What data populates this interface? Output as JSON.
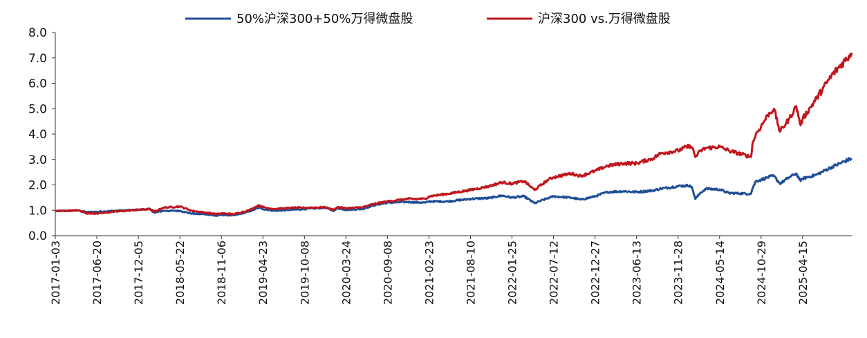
{
  "chart_data": {
    "type": "line",
    "title": "",
    "xlabel": "",
    "ylabel": "",
    "ylim": [
      0,
      8
    ],
    "yticks": [
      "0.0",
      "1.0",
      "2.0",
      "3.0",
      "4.0",
      "5.0",
      "6.0",
      "7.0",
      "8.0"
    ],
    "xticks": [
      "2017-01-03",
      "2017-06-20",
      "2017-12-05",
      "2018-05-22",
      "2018-11-06",
      "2019-04-23",
      "2019-10-08",
      "2020-03-24",
      "2020-09-08",
      "2021-02-23",
      "2021-08-10",
      "2022-01-25",
      "2022-07-12",
      "2022-12-27",
      "2023-06-13",
      "2023-11-28",
      "2024-05-14",
      "2024-10-29",
      "2025-04-15"
    ],
    "x_end": "2025-10-31",
    "grid": false,
    "legend_position": "top",
    "series": [
      {
        "name": "50%沪深300+50%万得微盘股",
        "color": "#1f4e96",
        "points": [
          [
            "2017-01-03",
            0.97
          ],
          [
            "2017-02-20",
            0.98
          ],
          [
            "2017-04-05",
            1.0
          ],
          [
            "2017-05-10",
            0.93
          ],
          [
            "2017-06-20",
            0.94
          ],
          [
            "2017-08-15",
            0.97
          ],
          [
            "2017-10-15",
            1.0
          ],
          [
            "2017-12-05",
            1.02
          ],
          [
            "2018-01-20",
            1.05
          ],
          [
            "2018-02-09",
            0.9
          ],
          [
            "2018-03-15",
            0.98
          ],
          [
            "2018-05-22",
            0.98
          ],
          [
            "2018-07-10",
            0.87
          ],
          [
            "2018-09-10",
            0.84
          ],
          [
            "2018-10-18",
            0.78
          ],
          [
            "2018-11-06",
            0.82
          ],
          [
            "2018-12-28",
            0.8
          ],
          [
            "2019-02-25",
            0.95
          ],
          [
            "2019-04-08",
            1.1
          ],
          [
            "2019-04-23",
            1.05
          ],
          [
            "2019-06-10",
            0.98
          ],
          [
            "2019-08-20",
            1.02
          ],
          [
            "2019-10-08",
            1.05
          ],
          [
            "2019-12-31",
            1.1
          ],
          [
            "2020-02-03",
            0.98
          ],
          [
            "2020-02-20",
            1.08
          ],
          [
            "2020-03-24",
            1.02
          ],
          [
            "2020-05-30",
            1.05
          ],
          [
            "2020-07-15",
            1.2
          ],
          [
            "2020-09-08",
            1.3
          ],
          [
            "2020-11-30",
            1.33
          ],
          [
            "2021-02-08",
            1.3
          ],
          [
            "2021-02-23",
            1.35
          ],
          [
            "2021-05-10",
            1.35
          ],
          [
            "2021-08-10",
            1.45
          ],
          [
            "2021-10-25",
            1.48
          ],
          [
            "2021-12-15",
            1.58
          ],
          [
            "2022-01-25",
            1.5
          ],
          [
            "2022-03-15",
            1.55
          ],
          [
            "2022-04-26",
            1.28
          ],
          [
            "2022-06-20",
            1.48
          ],
          [
            "2022-07-12",
            1.55
          ],
          [
            "2022-09-20",
            1.5
          ],
          [
            "2022-10-31",
            1.42
          ],
          [
            "2022-12-27",
            1.55
          ],
          [
            "2023-02-15",
            1.72
          ],
          [
            "2023-04-20",
            1.75
          ],
          [
            "2023-06-13",
            1.72
          ],
          [
            "2023-08-20",
            1.78
          ],
          [
            "2023-09-20",
            1.85
          ],
          [
            "2023-11-28",
            1.95
          ],
          [
            "2024-01-15",
            1.98
          ],
          [
            "2024-01-25",
            1.85
          ],
          [
            "2024-02-06",
            1.45
          ],
          [
            "2024-02-28",
            1.7
          ],
          [
            "2024-03-20",
            1.85
          ],
          [
            "2024-05-14",
            1.82
          ],
          [
            "2024-06-20",
            1.68
          ],
          [
            "2024-09-18",
            1.65
          ],
          [
            "2024-09-24",
            1.85
          ],
          [
            "2024-10-08",
            2.15
          ],
          [
            "2024-10-29",
            2.2
          ],
          [
            "2024-11-25",
            2.3
          ],
          [
            "2024-12-20",
            2.35
          ],
          [
            "2025-01-13",
            2.05
          ],
          [
            "2025-02-20",
            2.3
          ],
          [
            "2025-03-20",
            2.45
          ],
          [
            "2025-04-07",
            2.15
          ],
          [
            "2025-04-15",
            2.25
          ],
          [
            "2025-06-10",
            2.4
          ],
          [
            "2025-08-10",
            2.7
          ],
          [
            "2025-10-31",
            3.05
          ]
        ]
      },
      {
        "name": "沪深300 vs.万得微盘股",
        "color": "#c0161d",
        "points": [
          [
            "2017-01-03",
            0.97
          ],
          [
            "2017-02-20",
            0.98
          ],
          [
            "2017-04-05",
            1.0
          ],
          [
            "2017-05-10",
            0.88
          ],
          [
            "2017-06-20",
            0.88
          ],
          [
            "2017-08-15",
            0.93
          ],
          [
            "2017-10-15",
            0.98
          ],
          [
            "2017-12-05",
            1.02
          ],
          [
            "2018-01-20",
            1.05
          ],
          [
            "2018-02-09",
            0.95
          ],
          [
            "2018-03-15",
            1.1
          ],
          [
            "2018-05-22",
            1.15
          ],
          [
            "2018-07-10",
            0.98
          ],
          [
            "2018-09-10",
            0.9
          ],
          [
            "2018-10-18",
            0.85
          ],
          [
            "2018-11-06",
            0.88
          ],
          [
            "2018-12-28",
            0.85
          ],
          [
            "2019-02-25",
            1.0
          ],
          [
            "2019-04-08",
            1.2
          ],
          [
            "2019-04-23",
            1.12
          ],
          [
            "2019-06-10",
            1.05
          ],
          [
            "2019-08-20",
            1.1
          ],
          [
            "2019-10-08",
            1.1
          ],
          [
            "2019-12-31",
            1.12
          ],
          [
            "2020-02-03",
            1.02
          ],
          [
            "2020-02-20",
            1.13
          ],
          [
            "2020-03-24",
            1.08
          ],
          [
            "2020-05-30",
            1.12
          ],
          [
            "2020-07-15",
            1.25
          ],
          [
            "2020-09-08",
            1.35
          ],
          [
            "2020-11-30",
            1.45
          ],
          [
            "2021-02-08",
            1.45
          ],
          [
            "2021-02-23",
            1.55
          ],
          [
            "2021-05-10",
            1.65
          ],
          [
            "2021-08-10",
            1.8
          ],
          [
            "2021-10-25",
            1.95
          ],
          [
            "2021-12-15",
            2.1
          ],
          [
            "2022-01-25",
            2.05
          ],
          [
            "2022-03-15",
            2.15
          ],
          [
            "2022-04-26",
            1.8
          ],
          [
            "2022-06-20",
            2.2
          ],
          [
            "2022-07-12",
            2.3
          ],
          [
            "2022-09-20",
            2.45
          ],
          [
            "2022-10-31",
            2.35
          ],
          [
            "2022-12-27",
            2.55
          ],
          [
            "2023-02-15",
            2.75
          ],
          [
            "2023-04-20",
            2.85
          ],
          [
            "2023-06-13",
            2.85
          ],
          [
            "2023-08-20",
            3.05
          ],
          [
            "2023-09-20",
            3.25
          ],
          [
            "2023-11-28",
            3.35
          ],
          [
            "2024-01-15",
            3.55
          ],
          [
            "2024-01-25",
            3.45
          ],
          [
            "2024-02-06",
            3.1
          ],
          [
            "2024-02-28",
            3.35
          ],
          [
            "2024-03-20",
            3.45
          ],
          [
            "2024-05-14",
            3.5
          ],
          [
            "2024-06-20",
            3.35
          ],
          [
            "2024-09-18",
            3.1
          ],
          [
            "2024-09-24",
            3.6
          ],
          [
            "2024-10-08",
            4.0
          ],
          [
            "2024-10-29",
            4.3
          ],
          [
            "2024-11-25",
            4.75
          ],
          [
            "2024-12-20",
            5.0
          ],
          [
            "2025-01-13",
            4.1
          ],
          [
            "2025-02-20",
            4.6
          ],
          [
            "2025-03-20",
            5.1
          ],
          [
            "2025-04-07",
            4.35
          ],
          [
            "2025-04-15",
            4.6
          ],
          [
            "2025-06-10",
            5.4
          ],
          [
            "2025-08-10",
            6.3
          ],
          [
            "2025-10-31",
            7.2
          ]
        ]
      }
    ]
  }
}
